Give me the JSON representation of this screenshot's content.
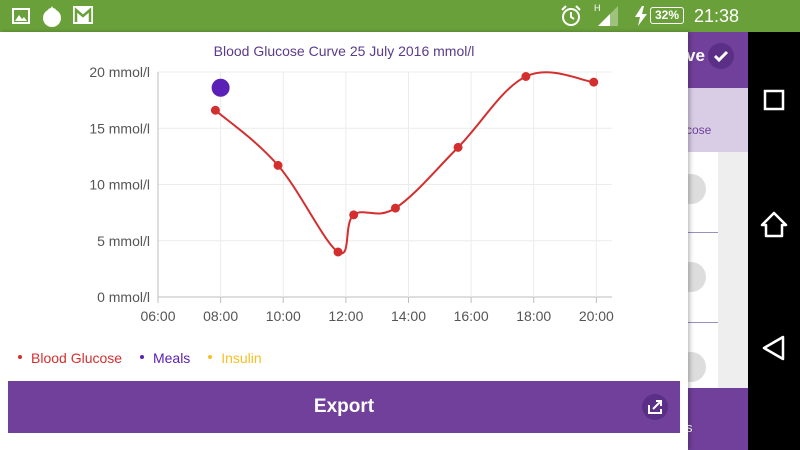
{
  "status_bar": {
    "battery": "32%",
    "time": "21:38",
    "network_label": "H",
    "icons": [
      "gallery-icon",
      "tomato-app-icon",
      "gmail-icon",
      "alarm-icon",
      "signal-icon",
      "charging-icon"
    ]
  },
  "background_app": {
    "action_text": "ve",
    "tab_label": "cose",
    "bottom_text": "s",
    "accent_color": "#70409a"
  },
  "chart_data": {
    "type": "line",
    "title": "Blood Glucose Curve 25 July 2016 mmol/l",
    "xlabel": "",
    "ylabel": "",
    "x_ticks": [
      "06:00",
      "08:00",
      "10:00",
      "12:00",
      "14:00",
      "16:00",
      "18:00",
      "20:00"
    ],
    "y_ticks": [
      "0 mmol/l",
      "5 mmol/l",
      "10 mmol/l",
      "15 mmol/l",
      "20 mmol/l"
    ],
    "xlim": [
      "06:00",
      "20:30"
    ],
    "ylim": [
      0,
      20
    ],
    "grid": true,
    "legend_position": "bottom-left",
    "series": [
      {
        "name": "Blood Glucose",
        "color": "#d32f2f",
        "style": "smooth-line",
        "points": [
          {
            "x": "07:50",
            "y": 16.6
          },
          {
            "x": "09:50",
            "y": 11.7
          },
          {
            "x": "11:45",
            "y": 4.0
          },
          {
            "x": "12:15",
            "y": 7.3
          },
          {
            "x": "13:35",
            "y": 7.9
          },
          {
            "x": "15:35",
            "y": 13.3
          },
          {
            "x": "17:45",
            "y": 19.6
          },
          {
            "x": "19:55",
            "y": 19.1
          }
        ]
      },
      {
        "name": "Meals",
        "color": "#5b21b6",
        "style": "marker",
        "points": [
          {
            "x": "08:00",
            "y": 18.6
          }
        ]
      },
      {
        "name": "Insulin",
        "color": "#f6c025",
        "style": "marker",
        "points": []
      }
    ]
  },
  "legend": [
    {
      "label": "Blood Glucose",
      "color": "#d32f2f"
    },
    {
      "label": "Meals",
      "color": "#5b21b6"
    },
    {
      "label": "Insulin",
      "color": "#f6c025"
    }
  ],
  "export_button": {
    "label": "Export",
    "icon": "share-icon",
    "color": "#70409a"
  },
  "nav_bar": {
    "buttons": [
      "recents-square-icon",
      "home-icon",
      "back-icon"
    ]
  }
}
